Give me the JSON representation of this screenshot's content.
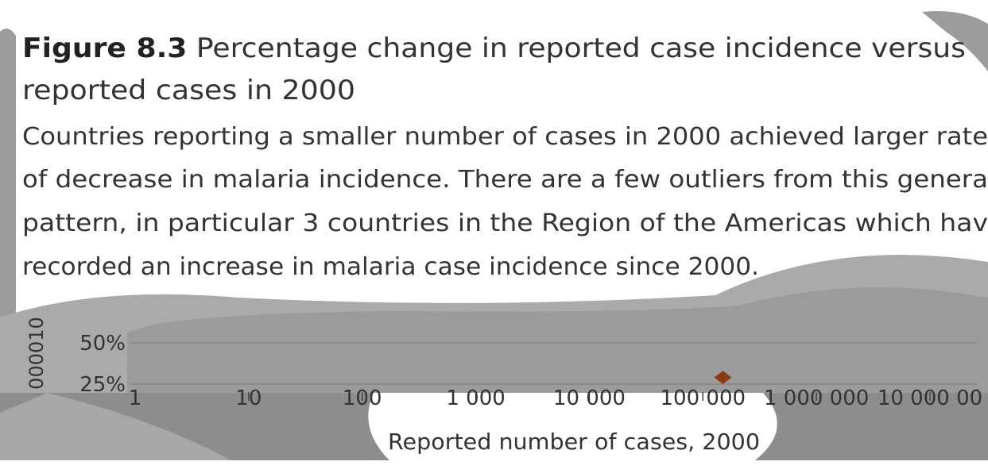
{
  "chart_data": {
    "type": "scatter",
    "title_label": "Figure 8.3",
    "title": "Percentage change in reported case incidence versus",
    "title_line2": "reported cases in 2000",
    "caption_lines": [
      "Countries reporting a smaller number of cases in 2000 achieved larger rate",
      "of decrease in malaria incidence. There are a few outliers from this genera",
      "pattern, in particular 3 countries in the Region of the Americas which hav",
      "recorded an increase in malaria case incidence since 2000."
    ],
    "ylabel": "000010",
    "xlabel": "Reported number of cases, 2000",
    "x_scale": "log",
    "xlim": [
      1,
      10000000
    ],
    "xticks": [
      1,
      10,
      100,
      {
        "value": 1000,
        "label": "1 000"
      },
      {
        "value": 10000,
        "label": "10 000"
      },
      {
        "value": 100000,
        "label": "100 000"
      },
      {
        "value": 1000000,
        "label": "1 000 000"
      },
      {
        "value": 10000000,
        "label": "10 000 00"
      }
    ],
    "ylim": [
      20,
      55
    ],
    "yticks": [
      {
        "value": 50,
        "label": "50%"
      },
      {
        "value": 25,
        "label": "25%"
      }
    ],
    "grid": true,
    "series": [
      {
        "color": "#8b3a12",
        "x": [
          150000
        ],
        "values": [
          29
        ]
      }
    ]
  }
}
